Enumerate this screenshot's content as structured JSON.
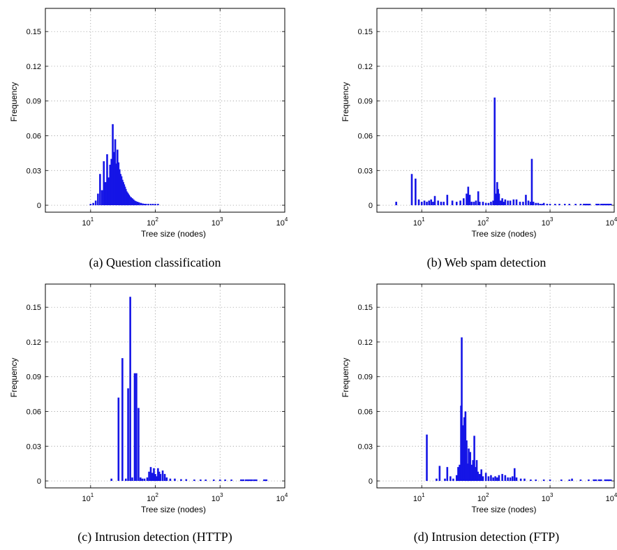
{
  "figure": {
    "panels": [
      {
        "caption": "(a)  Question classification",
        "chart_data": {
          "type": "bar",
          "xlabel": "Tree size (nodes)",
          "ylabel": "Frequency",
          "x_scale": "log",
          "xlim": [
            2,
            10000
          ],
          "ylim": [
            -0.006,
            0.17
          ],
          "grid": true,
          "x_ticks": [
            {
              "base": "10",
              "exp": "1"
            },
            {
              "base": "10",
              "exp": "2"
            },
            {
              "base": "10",
              "exp": "3"
            },
            {
              "base": "10",
              "exp": "4"
            }
          ],
          "x_tick_values": [
            10,
            100,
            1000,
            10000
          ],
          "y_ticks": [
            "0",
            "0.03",
            "0.06",
            "0.09",
            "0.12",
            "0.15"
          ],
          "y_tick_values": [
            0,
            0.03,
            0.06,
            0.09,
            0.12,
            0.15
          ],
          "x": [
            10,
            11,
            12,
            13,
            14,
            15,
            16,
            17,
            18,
            19,
            20,
            21,
            22,
            23,
            24,
            25,
            26,
            27,
            28,
            29,
            30,
            31,
            32,
            33,
            34,
            35,
            36,
            37,
            38,
            39,
            40,
            42,
            44,
            46,
            48,
            50,
            53,
            56,
            60,
            64,
            68,
            72,
            78,
            85,
            92,
            100,
            110
          ],
          "values": [
            0.001,
            0.002,
            0.004,
            0.01,
            0.027,
            0.013,
            0.038,
            0.02,
            0.044,
            0.024,
            0.035,
            0.04,
            0.07,
            0.046,
            0.057,
            0.036,
            0.048,
            0.037,
            0.031,
            0.027,
            0.025,
            0.022,
            0.02,
            0.018,
            0.016,
            0.014,
            0.012,
            0.011,
            0.01,
            0.009,
            0.008,
            0.007,
            0.006,
            0.005,
            0.004,
            0.0035,
            0.003,
            0.0025,
            0.002,
            0.0015,
            0.0012,
            0.001,
            0.0008,
            0.0006,
            0.0005,
            0.0004,
            0.0003
          ]
        }
      },
      {
        "caption": "(b)  Web spam detection",
        "chart_data": {
          "type": "bar",
          "xlabel": "Tree size (nodes)",
          "ylabel": "Frequency",
          "x_scale": "log",
          "xlim": [
            2,
            10000
          ],
          "ylim": [
            -0.006,
            0.17
          ],
          "grid": true,
          "x_ticks": [
            {
              "base": "10",
              "exp": "1"
            },
            {
              "base": "10",
              "exp": "2"
            },
            {
              "base": "10",
              "exp": "3"
            },
            {
              "base": "10",
              "exp": "4"
            }
          ],
          "x_tick_values": [
            10,
            100,
            1000,
            10000
          ],
          "y_ticks": [
            "0",
            "0.03",
            "0.06",
            "0.09",
            "0.12",
            "0.15"
          ],
          "y_tick_values": [
            0,
            0.03,
            0.06,
            0.09,
            0.12,
            0.15
          ],
          "x": [
            4,
            7,
            8,
            9,
            10,
            11,
            12,
            13,
            14,
            15,
            16,
            18,
            20,
            22,
            25,
            30,
            35,
            40,
            45,
            50,
            53,
            56,
            60,
            65,
            70,
            76,
            80,
            90,
            100,
            110,
            120,
            130,
            137,
            145,
            150,
            155,
            160,
            170,
            180,
            190,
            200,
            220,
            240,
            270,
            300,
            340,
            380,
            420,
            460,
            500,
            520,
            550,
            600,
            650,
            700,
            750,
            800,
            900,
            1000,
            1200,
            1400,
            1700,
            2000,
            2500,
            3000
          ],
          "values": [
            0.003,
            0.027,
            0.023,
            0.005,
            0.003,
            0.004,
            0.003,
            0.004,
            0.005,
            0.003,
            0.008,
            0.004,
            0.003,
            0.003,
            0.009,
            0.004,
            0.003,
            0.004,
            0.006,
            0.01,
            0.016,
            0.009,
            0.003,
            0.003,
            0.004,
            0.012,
            0.003,
            0.003,
            0.002,
            0.002,
            0.003,
            0.004,
            0.093,
            0.01,
            0.02,
            0.014,
            0.01,
            0.004,
            0.006,
            0.003,
            0.005,
            0.004,
            0.004,
            0.005,
            0.005,
            0.003,
            0.003,
            0.009,
            0.004,
            0.003,
            0.04,
            0.003,
            0.002,
            0.002,
            0.001,
            0.001,
            0.002,
            0.001,
            0.001,
            0.001,
            0.0008,
            0.0008,
            0.0006,
            0.0005,
            0.0004
          ],
          "dashes_x": [
            3500,
            4000,
            5500,
            6500,
            7500,
            8500
          ]
        }
      },
      {
        "caption": "(c)  Intrusion detection (HTTP)",
        "chart_data": {
          "type": "bar",
          "xlabel": "Tree size (nodes)",
          "ylabel": "Frequency",
          "x_scale": "log",
          "xlim": [
            2,
            10000
          ],
          "ylim": [
            -0.006,
            0.17
          ],
          "grid": true,
          "x_ticks": [
            {
              "base": "10",
              "exp": "1"
            },
            {
              "base": "10",
              "exp": "2"
            },
            {
              "base": "10",
              "exp": "3"
            },
            {
              "base": "10",
              "exp": "4"
            }
          ],
          "x_tick_values": [
            10,
            100,
            1000,
            10000
          ],
          "y_ticks": [
            "0",
            "0.03",
            "0.06",
            "0.09",
            "0.12",
            "0.15"
          ],
          "y_tick_values": [
            0,
            0.03,
            0.06,
            0.09,
            0.12,
            0.15
          ],
          "x": [
            21,
            27,
            31,
            35,
            38,
            41,
            44,
            48,
            51,
            55,
            59,
            63,
            68,
            75,
            80,
            85,
            90,
            95,
            100,
            105,
            110,
            115,
            120,
            130,
            140,
            150,
            170,
            200,
            250,
            300,
            400,
            500,
            600,
            800,
            1000,
            1200,
            1500
          ],
          "values": [
            0.002,
            0.072,
            0.106,
            0.002,
            0.08,
            0.159,
            0.003,
            0.093,
            0.093,
            0.063,
            0.003,
            0.002,
            0.002,
            0.003,
            0.008,
            0.012,
            0.007,
            0.011,
            0.006,
            0.004,
            0.011,
            0.008,
            0.006,
            0.009,
            0.006,
            0.003,
            0.002,
            0.002,
            0.0015,
            0.0015,
            0.001,
            0.001,
            0.001,
            0.001,
            0.001,
            0.0008,
            0.0008
          ],
          "dashes_x": [
            2200,
            2600,
            3000,
            3500,
            5000
          ]
        }
      },
      {
        "caption": "(d)  Intrusion detection (FTP)",
        "chart_data": {
          "type": "bar",
          "xlabel": "Tree size (nodes)",
          "ylabel": "Frequency",
          "x_scale": "log",
          "xlim": [
            2,
            10000
          ],
          "ylim": [
            -0.006,
            0.17
          ],
          "grid": true,
          "x_ticks": [
            {
              "base": "10",
              "exp": "1"
            },
            {
              "base": "10",
              "exp": "2"
            },
            {
              "base": "10",
              "exp": "3"
            },
            {
              "base": "10",
              "exp": "4"
            }
          ],
          "x_tick_values": [
            10,
            100,
            1000,
            10000
          ],
          "y_ticks": [
            "0",
            "0.03",
            "0.06",
            "0.09",
            "0.12",
            "0.15"
          ],
          "y_tick_values": [
            0,
            0.03,
            0.06,
            0.09,
            0.12,
            0.15
          ],
          "x": [
            12,
            17,
            19,
            23,
            25,
            28,
            31,
            35,
            37,
            39,
            41,
            42,
            44,
            46,
            48,
            50,
            52,
            54,
            57,
            60,
            63,
            66,
            69,
            72,
            75,
            80,
            85,
            90,
            100,
            110,
            120,
            130,
            140,
            150,
            160,
            180,
            200,
            220,
            240,
            260,
            280,
            300,
            350,
            400,
            500,
            600,
            800,
            1000,
            1500,
            2000,
            2200,
            3000,
            4000
          ],
          "values": [
            0.04,
            0.002,
            0.013,
            0.002,
            0.012,
            0.004,
            0.002,
            0.005,
            0.012,
            0.014,
            0.065,
            0.124,
            0.048,
            0.055,
            0.06,
            0.035,
            0.015,
            0.028,
            0.025,
            0.014,
            0.018,
            0.039,
            0.012,
            0.018,
            0.008,
            0.006,
            0.01,
            0.004,
            0.007,
            0.004,
            0.005,
            0.003,
            0.004,
            0.003,
            0.005,
            0.006,
            0.005,
            0.003,
            0.003,
            0.004,
            0.011,
            0.003,
            0.002,
            0.002,
            0.001,
            0.001,
            0.001,
            0.001,
            0.001,
            0.001,
            0.002,
            0.0008,
            0.0008
          ],
          "dashes_x": [
            5000,
            6000,
            7500,
            8500
          ]
        }
      }
    ]
  }
}
